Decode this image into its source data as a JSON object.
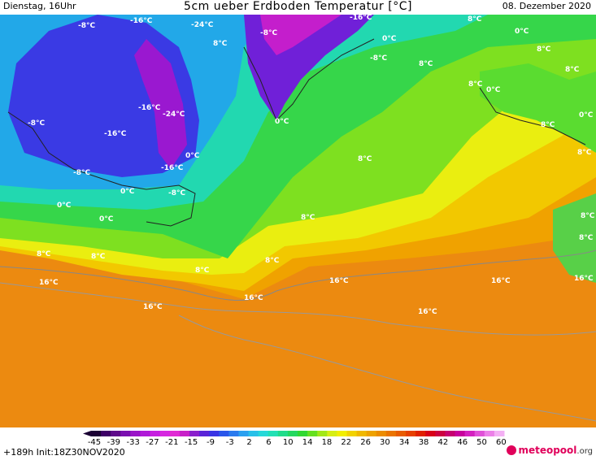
{
  "header": {
    "left": "Dienstag, 16Uhr",
    "title": "5cm ueber Erdboden Temperatur [°C]",
    "date": "08. Dezember 2020"
  },
  "footer": {
    "run_info": "+189h  Init:18Z30NOV2020",
    "brand": "meteopool",
    "brand_suffix": ".org"
  },
  "colorbar": {
    "ticks": [
      "-45",
      "-39",
      "-33",
      "-27",
      "-21",
      "-15",
      "-9",
      "-3",
      "2",
      "6",
      "10",
      "14",
      "18",
      "22",
      "26",
      "30",
      "34",
      "38",
      "42",
      "46",
      "50",
      "60"
    ],
    "colors": [
      "#1a0033",
      "#3d0066",
      "#5e0a8a",
      "#7a0fb0",
      "#9a14c8",
      "#b01ad8",
      "#c61ee0",
      "#d628e0",
      "#e02ad4",
      "#c820c8",
      "#8a1ecc",
      "#5a24d8",
      "#3a34e4",
      "#2a56ea",
      "#2a7aee",
      "#2aa0f0",
      "#28c0e8",
      "#26d8d8",
      "#22e0b4",
      "#20dc8a",
      "#24d860",
      "#30d832",
      "#66e020",
      "#a2e818",
      "#d6ee14",
      "#f2ee00",
      "#f2d200",
      "#f0b800",
      "#eea200",
      "#ec8c00",
      "#ea7400",
      "#e85c00",
      "#e64000",
      "#e02000",
      "#d80018",
      "#cc0040",
      "#c60070",
      "#c8009c",
      "#d420c0",
      "#e050d8",
      "#ec80e8",
      "#f4b0f4"
    ]
  },
  "map_labels": [
    {
      "text": "-8°C",
      "a": "stem"
    },
    {
      "text": "-16°C",
      "a": "stem"
    },
    {
      "text": "-24°C",
      "a": "stem"
    },
    {
      "text": "-16°C",
      "a": "stem"
    },
    {
      "text": "-8°C",
      "a": "stem"
    },
    {
      "text": "0°C",
      "a": "stem"
    },
    {
      "text": "-8°C",
      "a": "stem"
    },
    {
      "text": "-16°C",
      "a": "stem"
    },
    {
      "text": "-24°C",
      "a": "stem"
    },
    {
      "text": "-16°C",
      "a": "stem"
    },
    {
      "text": "-8°C",
      "a": "stem"
    },
    {
      "text": "8°C",
      "a": "stem"
    },
    {
      "text": "0°C",
      "a": "stem"
    },
    {
      "text": "-8°C",
      "a": "stem"
    },
    {
      "text": "-16°C",
      "a": "stem"
    },
    {
      "text": "-8°C",
      "a": "stem"
    },
    {
      "text": "0°C",
      "a": "stem"
    },
    {
      "text": "8°C",
      "a": "stem"
    },
    {
      "text": "0°C",
      "a": "stem"
    }
  ]
}
